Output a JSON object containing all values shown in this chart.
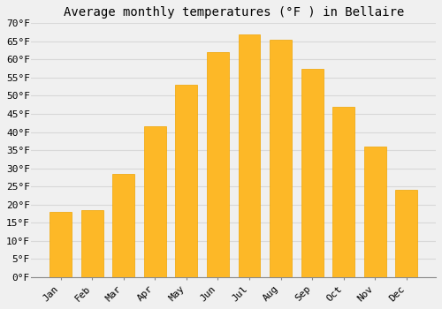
{
  "title": "Average monthly temperatures (°F ) in Bellaire",
  "months": [
    "Jan",
    "Feb",
    "Mar",
    "Apr",
    "May",
    "Jun",
    "Jul",
    "Aug",
    "Sep",
    "Oct",
    "Nov",
    "Dec"
  ],
  "values": [
    18,
    18.5,
    28.5,
    41.5,
    53,
    62,
    67,
    65.5,
    57.5,
    47,
    36,
    24
  ],
  "bar_color": "#FDB827",
  "bar_edge_color": "#F0A500",
  "ylim": [
    0,
    70
  ],
  "yticks": [
    0,
    5,
    10,
    15,
    20,
    25,
    30,
    35,
    40,
    45,
    50,
    55,
    60,
    65,
    70
  ],
  "background_color": "#F0F0F0",
  "grid_color": "#D8D8D8",
  "title_fontsize": 10,
  "tick_fontsize": 8
}
